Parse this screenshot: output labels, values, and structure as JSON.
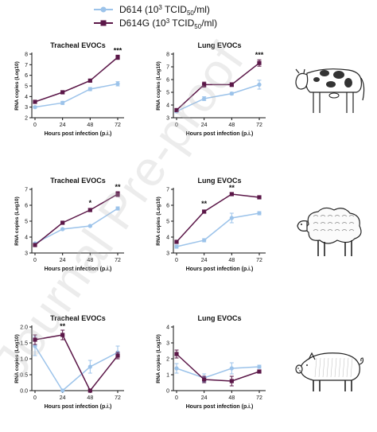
{
  "figure": {
    "watermark": "Journal Pre-proof"
  },
  "legend": {
    "items": [
      {
        "label_prefix": "D614 (10",
        "sup": "3",
        "label_mid": " TCID",
        "sub": "50",
        "label_suffix": "/ml)",
        "color": "#9cc3ea",
        "marker": "circle"
      },
      {
        "label_prefix": "D614G (10",
        "sup": "3",
        "label_mid": " TCID",
        "sub": "50",
        "label_suffix": "/ml)",
        "color": "#5b1748",
        "marker": "square"
      }
    ]
  },
  "animals": [
    {
      "name": "cow-icon",
      "row": 0
    },
    {
      "name": "sheep-icon",
      "row": 1
    },
    {
      "name": "pig-icon",
      "row": 2
    }
  ],
  "chart_data": [
    {
      "type": "line",
      "title": "Tracheal EVOCs",
      "xlabel": "Hours post infection (p.i.)",
      "ylabel": "RNA copies (Log10)",
      "x": [
        0,
        24,
        48,
        72
      ],
      "ylim": [
        2,
        8
      ],
      "yticks": [
        2,
        3,
        4,
        5,
        6,
        7,
        8
      ],
      "series": [
        {
          "name": "D614",
          "values": [
            3.0,
            3.4,
            4.7,
            5.2
          ],
          "err": [
            0.1,
            0.15,
            0.15,
            0.2
          ]
        },
        {
          "name": "D614G",
          "values": [
            3.5,
            4.4,
            5.5,
            7.7
          ],
          "err": [
            0.1,
            0.15,
            0.1,
            0.2
          ]
        }
      ],
      "annotations": [
        {
          "x": 72,
          "y": 8.1,
          "text": "***"
        }
      ]
    },
    {
      "type": "line",
      "title": "Lung EVOCs",
      "xlabel": "Hours post infection (p.i.)",
      "ylabel": "RNA copies (Log10)",
      "x": [
        0,
        24,
        48,
        72
      ],
      "ylim": [
        3,
        8
      ],
      "yticks": [
        3,
        4,
        5,
        6,
        7,
        8
      ],
      "series": [
        {
          "name": "D614",
          "values": [
            3.5,
            4.5,
            4.9,
            5.6
          ],
          "err": [
            0.1,
            0.15,
            0.1,
            0.35
          ]
        },
        {
          "name": "D614G",
          "values": [
            3.6,
            5.6,
            5.6,
            7.3
          ],
          "err": [
            0.1,
            0.2,
            0.15,
            0.25
          ]
        }
      ],
      "annotations": [
        {
          "x": 72,
          "y": 7.75,
          "text": "***"
        }
      ]
    },
    {
      "type": "line",
      "title": "Tracheal EVOCs",
      "xlabel": "Hours post infection (p.i.)",
      "ylabel": "RNA copies (Log10)",
      "x": [
        0,
        24,
        48,
        72
      ],
      "ylim": [
        3,
        7
      ],
      "yticks": [
        3,
        4,
        5,
        6,
        7
      ],
      "series": [
        {
          "name": "D614",
          "values": [
            3.6,
            4.5,
            4.7,
            5.8
          ],
          "err": [
            0.05,
            0.05,
            0.05,
            0.1
          ]
        },
        {
          "name": "D614G",
          "values": [
            3.5,
            4.9,
            5.7,
            6.7
          ],
          "err": [
            0.05,
            0.05,
            0.1,
            0.15
          ]
        }
      ],
      "annotations": [
        {
          "x": 48,
          "y": 6.0,
          "text": "*"
        },
        {
          "x": 72,
          "y": 7.0,
          "text": "**"
        }
      ]
    },
    {
      "type": "line",
      "title": "Lung EVOCs",
      "xlabel": "Hours post infection (p.i.)",
      "ylabel": "RNA copies (Log10)",
      "x": [
        0,
        24,
        48,
        72
      ],
      "ylim": [
        3,
        7
      ],
      "yticks": [
        3,
        4,
        5,
        6,
        7
      ],
      "series": [
        {
          "name": "D614",
          "values": [
            3.4,
            3.8,
            5.2,
            5.5
          ],
          "err": [
            0.1,
            0.1,
            0.3,
            0.1
          ]
        },
        {
          "name": "D614G",
          "values": [
            3.7,
            5.6,
            6.7,
            6.5
          ],
          "err": [
            0.1,
            0.1,
            0.1,
            0.1
          ]
        }
      ],
      "annotations": [
        {
          "x": 24,
          "y": 5.95,
          "text": "**"
        },
        {
          "x": 48,
          "y": 6.95,
          "text": "**"
        }
      ]
    },
    {
      "type": "line",
      "title": "Tracheal EVOCs",
      "xlabel": "Hours post infection (p.i.)",
      "ylabel": "RNA copies (Log10)",
      "x": [
        0,
        24,
        48,
        72
      ],
      "ylim": [
        0,
        2
      ],
      "yticks": [
        0,
        0.5,
        1.0,
        1.5,
        2.0
      ],
      "series": [
        {
          "name": "D614",
          "values": [
            1.4,
            0.0,
            0.75,
            1.2
          ],
          "err": [
            0.3,
            0.0,
            0.2,
            0.2
          ]
        },
        {
          "name": "D614G",
          "values": [
            1.6,
            1.75,
            0.0,
            1.1
          ],
          "err": [
            0.15,
            0.15,
            0.0,
            0.1
          ]
        }
      ],
      "annotations": [
        {
          "x": 24,
          "y": 1.95,
          "text": "**"
        }
      ]
    },
    {
      "type": "line",
      "title": "Lung EVOCs",
      "xlabel": "Hours post infection (p.i.)",
      "ylabel": "RNA copies (Log10)",
      "x": [
        0,
        24,
        48,
        72
      ],
      "ylim": [
        0,
        4
      ],
      "yticks": [
        0,
        1,
        2,
        3,
        4
      ],
      "series": [
        {
          "name": "D614",
          "values": [
            1.4,
            0.8,
            1.4,
            1.5
          ],
          "err": [
            0.3,
            0.25,
            0.35,
            0.1
          ]
        },
        {
          "name": "D614G",
          "values": [
            2.3,
            0.7,
            0.6,
            1.2
          ],
          "err": [
            0.25,
            0.2,
            0.3,
            0.05
          ]
        }
      ],
      "annotations": []
    }
  ]
}
